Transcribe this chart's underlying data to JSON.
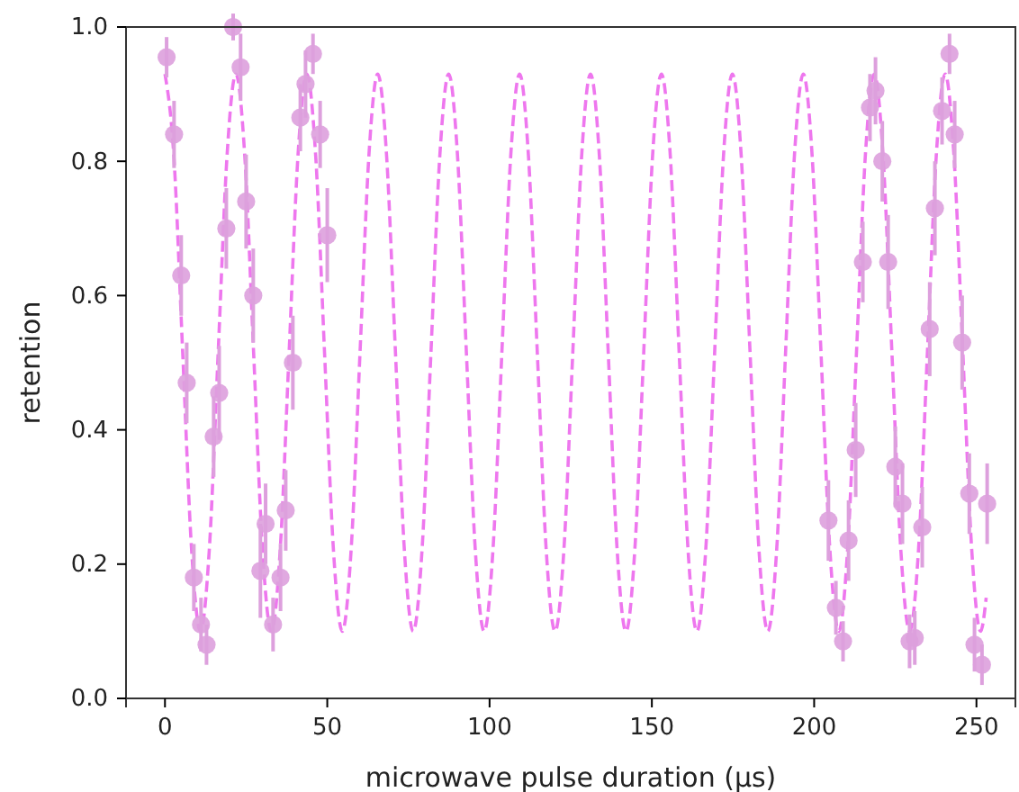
{
  "chart_data": {
    "type": "scatter",
    "xlabel": "microwave pulse duration (μs)",
    "ylabel": "retention",
    "xlim": [
      -12,
      262
    ],
    "ylim": [
      0,
      1
    ],
    "xticks": [
      0,
      50,
      100,
      150,
      200,
      250
    ],
    "yticks": [
      {
        "value": 0,
        "label": "0.0"
      },
      {
        "value": 0.2,
        "label": "0.2"
      },
      {
        "value": 0.4,
        "label": "0.4"
      },
      {
        "value": 0.6,
        "label": "0.6"
      },
      {
        "value": 0.8,
        "label": "0.8"
      },
      {
        "value": 1,
        "label": "1.0"
      }
    ],
    "grid": false,
    "series": [
      {
        "type": "line",
        "color": "#ee77ee",
        "line_style": "dashed",
        "x": [
          0,
          2.73,
          5.46,
          8.19,
          10.93,
          13.66,
          16.39,
          19.12,
          21.85,
          24.58,
          27.31,
          30.04,
          32.78,
          35.51,
          38.24,
          40.97,
          43.7,
          46.43,
          49.16,
          51.89,
          54.63,
          57.36,
          60.09,
          62.82,
          65.55,
          68.28,
          71.01,
          73.74,
          76.48,
          79.21,
          81.94,
          84.67,
          87.4,
          90.13,
          92.86,
          95.59,
          98.33,
          101.06,
          103.79,
          106.52,
          109.25,
          111.98,
          114.71,
          117.44,
          120.18,
          122.91,
          125.64,
          128.37,
          131.1,
          133.83,
          136.56,
          139.29,
          142.03,
          144.76,
          147.49,
          150.22,
          152.95,
          155.68,
          158.41,
          161.14,
          163.88,
          166.61,
          169.34,
          172.07,
          174.8,
          177.53,
          180.26,
          182.99,
          185.73,
          188.46,
          191.19,
          193.92,
          196.65,
          199.38,
          202.11,
          204.84,
          207.58,
          210.31,
          213.04,
          215.77,
          218.5,
          221.23,
          223.96,
          226.69,
          229.43,
          232.16,
          234.89,
          237.62,
          240.35,
          243.08,
          245.81,
          248.54,
          251.28,
          253
        ],
        "values": [
          0.93,
          0.808,
          0.515,
          0.222,
          0.1,
          0.222,
          0.515,
          0.808,
          0.93,
          0.808,
          0.515,
          0.222,
          0.1,
          0.222,
          0.515,
          0.808,
          0.93,
          0.808,
          0.515,
          0.222,
          0.1,
          0.222,
          0.515,
          0.808,
          0.93,
          0.808,
          0.515,
          0.222,
          0.1,
          0.222,
          0.515,
          0.808,
          0.93,
          0.808,
          0.515,
          0.222,
          0.1,
          0.222,
          0.515,
          0.808,
          0.93,
          0.808,
          0.515,
          0.222,
          0.1,
          0.222,
          0.515,
          0.808,
          0.93,
          0.808,
          0.515,
          0.222,
          0.1,
          0.222,
          0.515,
          0.808,
          0.93,
          0.808,
          0.515,
          0.222,
          0.1,
          0.222,
          0.515,
          0.808,
          0.93,
          0.808,
          0.515,
          0.222,
          0.1,
          0.222,
          0.515,
          0.808,
          0.93,
          0.808,
          0.515,
          0.222,
          0.1,
          0.222,
          0.515,
          0.808,
          0.93,
          0.808,
          0.515,
          0.222,
          0.1,
          0.222,
          0.515,
          0.808,
          0.93,
          0.808,
          0.515,
          0.222,
          0.1,
          0.15
        ]
      },
      {
        "color": "#dda0dd",
        "marker": "circle",
        "x": [
          0.5,
          2.8,
          5,
          6.7,
          8.9,
          11.1,
          12.8,
          15,
          16.7,
          18.9,
          21,
          23.3,
          25,
          27.2,
          29.4,
          31,
          33.3,
          35.6,
          37.2,
          39.4,
          41.7,
          43.3,
          45.6,
          47.8,
          50,
          204.4,
          206.7,
          208.9,
          210.6,
          212.8,
          215,
          217.2,
          218.9,
          221,
          222.8,
          225,
          227.2,
          229.4,
          231,
          233.3,
          235.6,
          237.2,
          239.4,
          241.7,
          243.3,
          245.6,
          247.8,
          249.4,
          251.7,
          253.3
        ],
        "values": [
          0.955,
          0.84,
          0.63,
          0.47,
          0.18,
          0.11,
          0.08,
          0.39,
          0.455,
          0.7,
          1.0,
          0.94,
          0.74,
          0.6,
          0.19,
          0.26,
          0.11,
          0.18,
          0.28,
          0.5,
          0.865,
          0.915,
          0.96,
          0.84,
          0.69,
          0.265,
          0.135,
          0.085,
          0.235,
          0.37,
          0.65,
          0.88,
          0.905,
          0.8,
          0.65,
          0.345,
          0.29,
          0.085,
          0.09,
          0.255,
          0.55,
          0.73,
          0.875,
          0.96,
          0.84,
          0.53,
          0.305,
          0.08,
          0.05,
          0.29
        ],
        "errors": [
          0.03,
          0.05,
          0.06,
          0.06,
          0.05,
          0.04,
          0.03,
          0.06,
          0.07,
          0.06,
          0.02,
          0.05,
          0.07,
          0.07,
          0.07,
          0.06,
          0.04,
          0.05,
          0.06,
          0.07,
          0.05,
          0.05,
          0.03,
          0.05,
          0.07,
          0.06,
          0.04,
          0.03,
          0.06,
          0.07,
          0.06,
          0.05,
          0.05,
          0.06,
          0.07,
          0.06,
          0.06,
          0.04,
          0.04,
          0.06,
          0.07,
          0.07,
          0.05,
          0.03,
          0.05,
          0.07,
          0.06,
          0.04,
          0.03,
          0.06
        ]
      }
    ]
  }
}
